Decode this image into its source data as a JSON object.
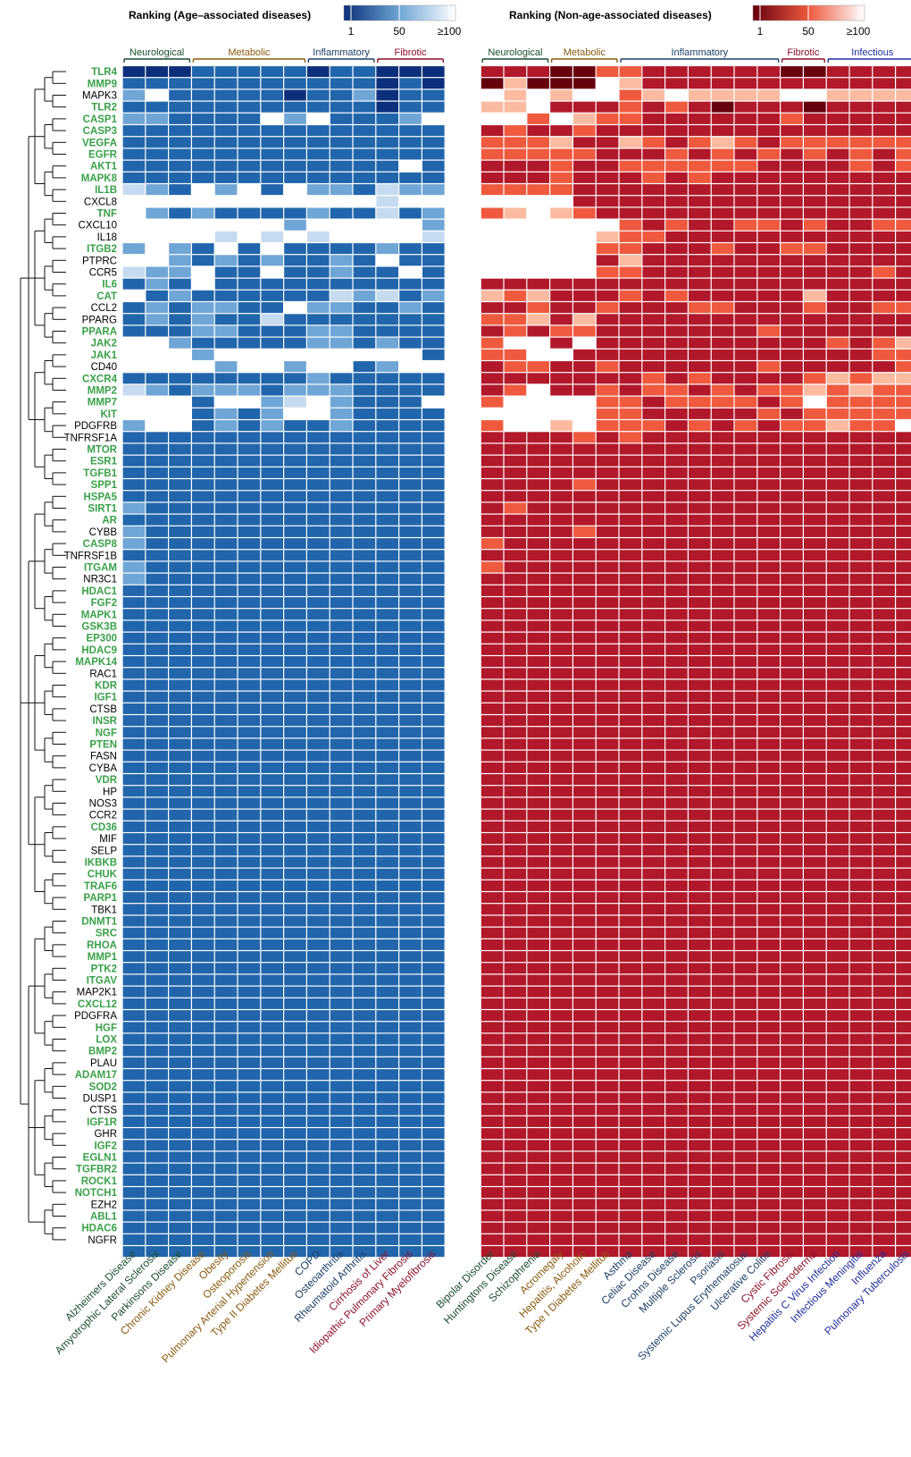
{
  "chart_data": {
    "type": "heatmap",
    "legends": [
      {
        "title": "Ranking (Age–associated diseases)",
        "ticks": [
          "1",
          "50",
          "≥100"
        ],
        "color_low": "#0b2f7a",
        "color_mid": "#6fa6d6",
        "color_high": "#ffffff"
      },
      {
        "title": "Ranking (Non-age-associated diseases)",
        "ticks": [
          "1",
          "50",
          "≥100"
        ],
        "color_low": "#67000d",
        "color_mid": "#ef5a3f",
        "color_high": "#ffffff"
      }
    ],
    "category_colors": {
      "neuro": "#1a4d2e",
      "meta": "#8a5a0e",
      "inflam": "#1b3f66",
      "fibro": "#8b0f2a",
      "infect": "#1f2e9a"
    },
    "top_groups": [
      {
        "label": "Neurological",
        "cat": "neuro",
        "start": 0,
        "end": 2
      },
      {
        "label": "Metabolic",
        "cat": "meta",
        "start": 3,
        "end": 7
      },
      {
        "label": "Inflammatory",
        "cat": "inflam",
        "start": 8,
        "end": 10
      },
      {
        "label": "Fibrotic",
        "cat": "fibro",
        "start": 11,
        "end": 13
      },
      {
        "label": "Neurological",
        "cat": "neuro",
        "start": 14,
        "end": 16
      },
      {
        "label": "Metabolic",
        "cat": "meta",
        "start": 17,
        "end": 19
      },
      {
        "label": "Inflammatory",
        "cat": "inflam",
        "start": 20,
        "end": 26
      },
      {
        "label": "Fibrotic",
        "cat": "fibro",
        "start": 27,
        "end": 28
      },
      {
        "label": "Infectious",
        "cat": "infect",
        "start": 29,
        "end": 32
      }
    ],
    "columns": [
      {
        "name": "Alzheimers Disease",
        "cat": "neuro"
      },
      {
        "name": "Amyotrophic Lateral Sclerosis",
        "cat": "neuro"
      },
      {
        "name": "Parkinsons Disease",
        "cat": "neuro"
      },
      {
        "name": "Chronic Kidney Disease",
        "cat": "meta"
      },
      {
        "name": "Obesity",
        "cat": "meta"
      },
      {
        "name": "Osteoporosis",
        "cat": "meta"
      },
      {
        "name": "Pulmonary Arterial Hypertension",
        "cat": "meta"
      },
      {
        "name": "Type II Diabetes Mellitus",
        "cat": "meta"
      },
      {
        "name": "COPD",
        "cat": "inflam"
      },
      {
        "name": "Osteoarthritis",
        "cat": "inflam"
      },
      {
        "name": "Rheumatoid Arthritis",
        "cat": "inflam"
      },
      {
        "name": "Cirrhosis of Liver",
        "cat": "fibro"
      },
      {
        "name": "Idiopathic Pulmonary Fibrosis",
        "cat": "fibro"
      },
      {
        "name": "Primary Myelofibrosis",
        "cat": "fibro"
      },
      {
        "name": "Bipolar Disorder",
        "cat": "neuro"
      },
      {
        "name": "Huntingtons Disease",
        "cat": "neuro"
      },
      {
        "name": "Schizophrenia",
        "cat": "neuro"
      },
      {
        "name": "Acromegaly",
        "cat": "meta"
      },
      {
        "name": "Hepatitis, Alcoholic",
        "cat": "meta"
      },
      {
        "name": "Type I Diabetes Mellitus",
        "cat": "meta"
      },
      {
        "name": "Asthma",
        "cat": "inflam"
      },
      {
        "name": "Celiac Disease",
        "cat": "inflam"
      },
      {
        "name": "Crohns Disease",
        "cat": "inflam"
      },
      {
        "name": "Multiple Sclerosis",
        "cat": "inflam"
      },
      {
        "name": "Psoriasis",
        "cat": "inflam"
      },
      {
        "name": "Systemic Lupus Erythematosus",
        "cat": "inflam"
      },
      {
        "name": "Ulcerative Colitis",
        "cat": "inflam"
      },
      {
        "name": "Cystic Fibrosis",
        "cat": "fibro"
      },
      {
        "name": "Systemic Scleroderma",
        "cat": "fibro"
      },
      {
        "name": "Hepatitis C Virus Infection",
        "cat": "infect"
      },
      {
        "name": "Infectious Meningitis",
        "cat": "infect"
      },
      {
        "name": "Influenza",
        "cat": "infect"
      },
      {
        "name": "Pulmonary Tuberculosis",
        "cat": "infect"
      }
    ],
    "gene_colors": {
      "highlight": "#3aa14a",
      "normal": "#000000"
    },
    "rows": [
      {
        "gene": "TLR4",
        "hl": true
      },
      {
        "gene": "MMP9",
        "hl": true
      },
      {
        "gene": "MAPK3",
        "hl": false
      },
      {
        "gene": "TLR2",
        "hl": true
      },
      {
        "gene": "CASP1",
        "hl": true
      },
      {
        "gene": "CASP3",
        "hl": true
      },
      {
        "gene": "VEGFA",
        "hl": true
      },
      {
        "gene": "EGFR",
        "hl": true
      },
      {
        "gene": "AKT1",
        "hl": true
      },
      {
        "gene": "MAPK8",
        "hl": true
      },
      {
        "gene": "IL1B",
        "hl": true
      },
      {
        "gene": "CXCL8",
        "hl": false
      },
      {
        "gene": "TNF",
        "hl": true
      },
      {
        "gene": "CXCL10",
        "hl": false
      },
      {
        "gene": "IL18",
        "hl": false
      },
      {
        "gene": "ITGB2",
        "hl": true
      },
      {
        "gene": "PTPRC",
        "hl": false
      },
      {
        "gene": "CCR5",
        "hl": false
      },
      {
        "gene": "IL6",
        "hl": true
      },
      {
        "gene": "CAT",
        "hl": true
      },
      {
        "gene": "CCL2",
        "hl": false
      },
      {
        "gene": "PPARG",
        "hl": false
      },
      {
        "gene": "PPARA",
        "hl": true
      },
      {
        "gene": "JAK2",
        "hl": true
      },
      {
        "gene": "JAK1",
        "hl": true
      },
      {
        "gene": "CD40",
        "hl": false
      },
      {
        "gene": "CXCR4",
        "hl": true
      },
      {
        "gene": "MMP2",
        "hl": true
      },
      {
        "gene": "MMP7",
        "hl": true
      },
      {
        "gene": "KIT",
        "hl": true
      },
      {
        "gene": "PDGFRB",
        "hl": false
      },
      {
        "gene": "TNFRSF1A",
        "hl": false
      },
      {
        "gene": "MTOR",
        "hl": true
      },
      {
        "gene": "ESR1",
        "hl": true
      },
      {
        "gene": "TGFB1",
        "hl": true
      },
      {
        "gene": "SPP1",
        "hl": true
      },
      {
        "gene": "HSPA5",
        "hl": true
      },
      {
        "gene": "SIRT1",
        "hl": true
      },
      {
        "gene": "AR",
        "hl": true
      },
      {
        "gene": "CYBB",
        "hl": false
      },
      {
        "gene": "CASP8",
        "hl": true
      },
      {
        "gene": "TNFRSF1B",
        "hl": false
      },
      {
        "gene": "ITGAM",
        "hl": true
      },
      {
        "gene": "NR3C1",
        "hl": false
      },
      {
        "gene": "HDAC1",
        "hl": true
      },
      {
        "gene": "FGF2",
        "hl": true
      },
      {
        "gene": "MAPK1",
        "hl": true
      },
      {
        "gene": "GSK3B",
        "hl": true
      },
      {
        "gene": "EP300",
        "hl": true
      },
      {
        "gene": "HDAC9",
        "hl": true
      },
      {
        "gene": "MAPK14",
        "hl": true
      },
      {
        "gene": "RAC1",
        "hl": false
      },
      {
        "gene": "KDR",
        "hl": true
      },
      {
        "gene": "IGF1",
        "hl": true
      },
      {
        "gene": "CTSB",
        "hl": false
      },
      {
        "gene": "INSR",
        "hl": true
      },
      {
        "gene": "NGF",
        "hl": true
      },
      {
        "gene": "PTEN",
        "hl": true
      },
      {
        "gene": "FASN",
        "hl": false
      },
      {
        "gene": "CYBA",
        "hl": false
      },
      {
        "gene": "VDR",
        "hl": true
      },
      {
        "gene": "HP",
        "hl": false
      },
      {
        "gene": "NOS3",
        "hl": false
      },
      {
        "gene": "CCR2",
        "hl": false
      },
      {
        "gene": "CD36",
        "hl": true
      },
      {
        "gene": "MIF",
        "hl": false
      },
      {
        "gene": "SELP",
        "hl": false
      },
      {
        "gene": "IKBKB",
        "hl": true
      },
      {
        "gene": "CHUK",
        "hl": true
      },
      {
        "gene": "TRAF6",
        "hl": true
      },
      {
        "gene": "PARP1",
        "hl": true
      },
      {
        "gene": "TBK1",
        "hl": false
      },
      {
        "gene": "DNMT1",
        "hl": true
      },
      {
        "gene": "SRC",
        "hl": true
      },
      {
        "gene": "RHOA",
        "hl": true
      },
      {
        "gene": "MMP1",
        "hl": true
      },
      {
        "gene": "PTK2",
        "hl": true
      },
      {
        "gene": "ITGAV",
        "hl": true
      },
      {
        "gene": "MAP2K1",
        "hl": false
      },
      {
        "gene": "CXCL12",
        "hl": true
      },
      {
        "gene": "PDGFRA",
        "hl": false
      },
      {
        "gene": "HGF",
        "hl": true
      },
      {
        "gene": "LOX",
        "hl": true
      },
      {
        "gene": "BMP2",
        "hl": true
      },
      {
        "gene": "PLAU",
        "hl": false
      },
      {
        "gene": "ADAM17",
        "hl": true
      },
      {
        "gene": "SOD2",
        "hl": true
      },
      {
        "gene": "DUSP1",
        "hl": false
      },
      {
        "gene": "CTSS",
        "hl": false
      },
      {
        "gene": "IGF1R",
        "hl": true
      },
      {
        "gene": "GHR",
        "hl": false
      },
      {
        "gene": "IGF2",
        "hl": true
      },
      {
        "gene": "EGLN1",
        "hl": true
      },
      {
        "gene": "TGFBR2",
        "hl": true
      },
      {
        "gene": "ROCK1",
        "hl": true
      },
      {
        "gene": "NOTCH1",
        "hl": true
      },
      {
        "gene": "EZH2",
        "hl": false
      },
      {
        "gene": "ABL1",
        "hl": true
      },
      {
        "gene": "HDAC6",
        "hl": true
      },
      {
        "gene": "NGFR",
        "hl": false
      }
    ],
    "cell_value_note": "",
    "values": [
      "aaabbbbbabbaaabbbaaccbbbbbbaabbbb",
      "bbbbbbbbbbbabaadaaa.dbbbbbbbbbbbb",
      "c.bbbbbabbcabb.d.d..cd.dddd..dddd",
      "bbbbbbbbbbbabbdd.bbbcbcbabbbabbbb",
      "ccbbbb.c.bbbc...c.dccbbbbbbcbbbbb",
      "bbbbbbbbbbbbbbbcbbcbbbbbbbbbbbbbb",
      "bbbbbbbbbbbbbbcccdbbdcbcdcbcccccc",
      "bbbbbbbbbbbbbbcccccbbbcbcbcbcbcbc",
      "bbbbbbbbbbbb.bbbbcbbccccccbbbbcbc",
      "bbbbbbbbbbbbbbbbbcbbbcbcbbbbbbbbb",
      "dcb.c.b.ccbdccccccbbbbbbbbbbbbbbb",
      "...........d......bbbbbbbbbbbbbbb",
      ".cbcbbbbcbbdbccd.dcbbbbbbbbbbbbbb",
      ".......c.....c......cbcbbccbcbbcc",
      "....d.d.d....d.....dccbbbbbbbbbbb",
      "c.cb.b.bbbbcbb.....ccbbbcbbccbbbb",
      "..cbcbcbbcb.bb.....bdbbbbbbbbbbbb",
      "dcc.bb.bbcbb.b.....ccbbbbbbbbbbcb",
      "bcb.bbbbbbbbbbbbbbbbbbbbbbbbbbbbb",
      ".bcbbbbbbdcdbcdcdbbbcbcbbbbbdbbbb",
      "bcbccbb.ccbbcbbbcbbcbbbccbbbcbbcc",
      "bcbcbbdbbbbbbbccdbdbbbbbbbbbbbbbb",
      "bbbccbbbccbbbbbcbccbbbbbbbcbbbbbb",
      "..cbbbbbccbcbbc..b.bbbbbbbbbbcbcd",
      "...c.........bcc..bbbbbbbbbbbbbcc",
      "....c..c..bc..bccbbcbbbbbbcbbbbbc",
      "bbbbbbbbcbbbbbbbbbbbbcbcbbbbcdcdd",
      "dcbcccbcccbbbbbc.bbcbccbcbccdcdcc",
      "...b..cd.cbbb.c....ccbccccbc.cccc",
      "...bcbc..cbbbb.....ccbbbbbcbccccc",
      "c..bcbcbbcbbbbc..d.cccbcbcbccdcc.",
      "bbbbbbbbbbbbbbbbbbcbcbbbbbbbbbbbb",
      "bbbbbbbbbbbbbbbbbbbbbbbbbbbbbbbbb",
      "bbbbbbbbbbbbbbbbbbbbbbbbbbbbbbbbb",
      "bbbbbbbbbbbbbbbbbbbbbbbbbbbbbbbbb",
      "bbbbbbbbbbbbbbbbbbcbbbbbbbbbbbbbb",
      "bbbbbbbbbbbbbbbbbbbbbbbbbbbbbbbbb",
      "cbbbbbbbbbbbbbbcbbbbbbbbbbbbbbbbb",
      "bbbbbbbbbbbbbbbbbbbbbbbbbbbbbbbbb",
      "cbbbbbbbbbbbbbbbbbcbbbbbbbbbbbbbb",
      "cbbbbbbbbbbbbbcbbbbbbbbbbbbbbbbbb",
      "bbbbbbbbbbbbbbbbbbbbbbbbbbbbbbbbb",
      "cbbbbbbbbbbbbbcbbbbbbbbbbbbbbbbbb",
      "cbbbbbbbbbbbbbbbbbbbbbbbbbbbbbbbb",
      "bbbbbbbbbbbbbbbbbbbbbbbbbbbbbbbbb",
      "bbbbbbbbbbbbbbbbbbbbbbbbbbbbbbbbb",
      "bbbbbbbbbbbbbbbbbbbbbbbbbbbbbbbbb",
      "bbbbbbbbbbbbbbbbbbbbbbbbbbbbbbbbb",
      "bbbbbbbbbbbbbbbbbbbbbbbbbbbbbbbbb",
      "bbbbbbbbbbbbbbbbbbbbbbbbbbbbbbbbb",
      "bbbbbbbbbbbbbbbbbbbbbbbbbbbbbbbbb",
      "bbbbbbbbbbbbbbbbbbbbbbbbbbbbbbbbb",
      "bbbbbbbbbbbbbbbbbbbbbbbbbbbbbbbbb",
      "bbbbbbbbbbbbbbbbbbbbbbbbbbbbbbbbb",
      "bbbbbbbbbbbbbbbbbbbbbbbbbbbbbbbbb",
      "bbbbbbbbbbbbbbbbbbbbbbbbbbbbbbbbb",
      "bbbbbbbbbbbbbbbbbbbbbbbbbbbbbbbbb",
      "bbbbbbbbbbbbbbbbbbbbbbbbbbbbbbbbb",
      "bbbbbbbbbbbbbbbbbbbbbbbbbbbbbbbbb",
      "bbbbbbbbbbbbbbbbbbbbbbbbbbbbbbbbb",
      "bbbbbbbbbbbbbbbbbbbbbbbbbbbbbbbbb",
      "bbbbbbbbbbbbbbbbbbbbbbbbbbbbbbbbb",
      "bbbbbbbbbbbbbbbbbbbbbbbbbbbbbbbbb",
      "bbbbbbbbbbbbbbbbbbbbbbbbbbbbbbbbb",
      "bbbbbbbbbbbbbbbbbbbbbbbbbbbbbbbbb",
      "bbbbbbbbbbbbbbbbbbbbbbbbbbbbbbbbb",
      "bbbbbbbbbbbbbbbbbbbbbbbbbbbbbbbbb",
      "bbbbbbbbbbbbbbbbbbbbbbbbbbbbbbbbb",
      "bbbbbbbbbbbbbbbbbbbbbbbbbbbbbbbbb",
      "bbbbbbbbbbbbbbbbbbbbbbbbbbbbbbbbb",
      "bbbbbbbbbbbbbbbbbbbbbbbbbbbbbbbbb",
      "bbbbbbbbbbbbbbbbbbbbbbbbbbbbbbbbb",
      "bbbbbbbbbbbbbbbbbbbbbbbbbbbbbbbbb",
      "bbbbbbbbbbbbbbbbbbbbbbbbbbbbbbbbb",
      "bbbbbbbbbbbbbbbbbbbbbbbbbbbbbbbbb",
      "bbbbbbbbbbbbbbbbbbbbbbbbbbbbbbbbb",
      "bbbbbbbbbbbbbbbbbbbbbbbbbbbbbbbbb",
      "bbbbbbbbbbbbbbbbbbbbbbbbbbbbbbbbb",
      "bbbbbbbbbbbbbbbbbbbbbbbbbbbbbbbbb",
      "bbbbbbbbbbbbbbbbbbbbbbbbbbbbbbbbb",
      "bbbbbbbbbbbbbbbbbbbbbbbbbbbbbbbbb",
      "bbbbbbbbbbbbbbbbbbbbbbbbbbbbbbbbb",
      "bbbbbbbbbbbbbbbbbbbbbbbbbbbbbbbbb",
      "bbbbbbbbbbbbbbbbbbbbbbbbbbbbbbbbb",
      "bbbbbbbbbbbbbbbbbbbbbbbbbbbbbbbbb",
      "bbbbbbbbbbbbbbbbbbbbbbbbbbbbbbbbb",
      "bbbbbbbbbbbbbbbbbbbbbbbbbbbbbbbbb",
      "bbbbbbbbbbbbbbbbbbbbbbbbbbbbbbbbb",
      "bbbbbbbbbbbbbbbbbbbbbbbbbbbbbbbbb",
      "bbbbbbbbbbbbbbbbbbbbbbbbbbbbbbbbb",
      "bbbbbbbbbbbbbbbbbbbbbbbbbbbbbbbbb",
      "bbbbbbbbbbbbbbbbbbbbbbbbbbbbbbbbb",
      "bbbbbbbbbbbbbbbbbbbbbbbbbbbbbbbbb",
      "bbbbbbbbbbbbbbbbbbbbbbbbbbbbbbbbb",
      "bbbbbbbbbbbbbbbbbbbbbbbbbbbbbbbbb",
      "bbbbbbbbbbbbbbbbbbbbbbbbbbbbbbbbb",
      "bbbbbbbbbbbbbbbbbbbbbbbbbbbbbbbbb",
      "bbbbbbbbbbbbbbbbbbbbbbbbbbbbbbbbb",
      "bbbbbbbbbbbbbbbbbbbbbbbbbbbbbbbbb",
      "bbbbbbbbbbbbbbbbbbbbbbbbbbbbbbbbb",
      "bbbbbbbbbbbbbbbbbbbbbbbbbbbbbbbbb"
    ]
  }
}
